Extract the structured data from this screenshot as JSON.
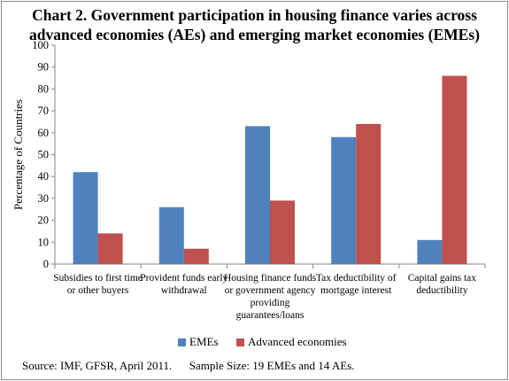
{
  "chart_data": {
    "type": "bar",
    "title_line1": "Chart 2. Government participation in housing finance varies across",
    "title_line2": "advanced economies (AEs) and emerging market economies (EMEs)",
    "ylabel": "Percentage of Countries",
    "ylim": [
      0,
      100
    ],
    "yticks": [
      0,
      10,
      20,
      30,
      40,
      50,
      60,
      70,
      80,
      90,
      100
    ],
    "grid": false,
    "legend_position": "bottom",
    "categories": [
      [
        "Subsidies to first time",
        "or other buyers"
      ],
      [
        "Provident funds early",
        "withdrawal"
      ],
      [
        "Housing finance funds",
        "or government agency",
        "providing",
        "guarantees/loans"
      ],
      [
        "Tax deductibility of",
        "mortgage interest"
      ],
      [
        "Capital gains tax",
        "deductibility"
      ]
    ],
    "series": [
      {
        "name": "EMEs",
        "color": "#4f81bd",
        "values": [
          42,
          26,
          63,
          58,
          11
        ]
      },
      {
        "name": "Advanced economies",
        "color": "#c0504d",
        "values": [
          14,
          7,
          29,
          64,
          86
        ]
      }
    ],
    "source": "Source: IMF, GFSR, April 2011.      Sample Size: 19 EMEs and 14 AEs."
  }
}
